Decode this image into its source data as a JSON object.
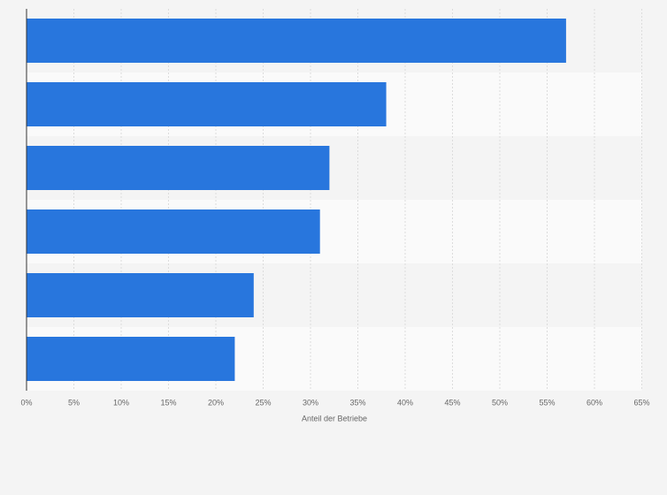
{
  "chart_data": {
    "type": "bar",
    "orientation": "horizontal",
    "x_label": "Anteil der Betriebe",
    "categories": [
      null,
      null,
      null,
      null,
      null,
      null
    ],
    "values": [
      57,
      38,
      32,
      31,
      24,
      22
    ],
    "color": "#2876dd",
    "xlim": [
      0,
      65
    ],
    "xticks": [
      {
        "value": 0,
        "label": "0%"
      },
      {
        "value": 5,
        "label": "5%"
      },
      {
        "value": 10,
        "label": "10%"
      },
      {
        "value": 15,
        "label": "15%"
      },
      {
        "value": 20,
        "label": "20%"
      },
      {
        "value": 25,
        "label": "25%"
      },
      {
        "value": 30,
        "label": "30%"
      },
      {
        "value": 35,
        "label": "35%"
      },
      {
        "value": 40,
        "label": "40%"
      },
      {
        "value": 45,
        "label": "45%"
      },
      {
        "value": 50,
        "label": "50%"
      },
      {
        "value": 55,
        "label": "55%"
      },
      {
        "value": 60,
        "label": "60%"
      },
      {
        "value": 65,
        "label": "65%"
      }
    ],
    "grid": true
  }
}
